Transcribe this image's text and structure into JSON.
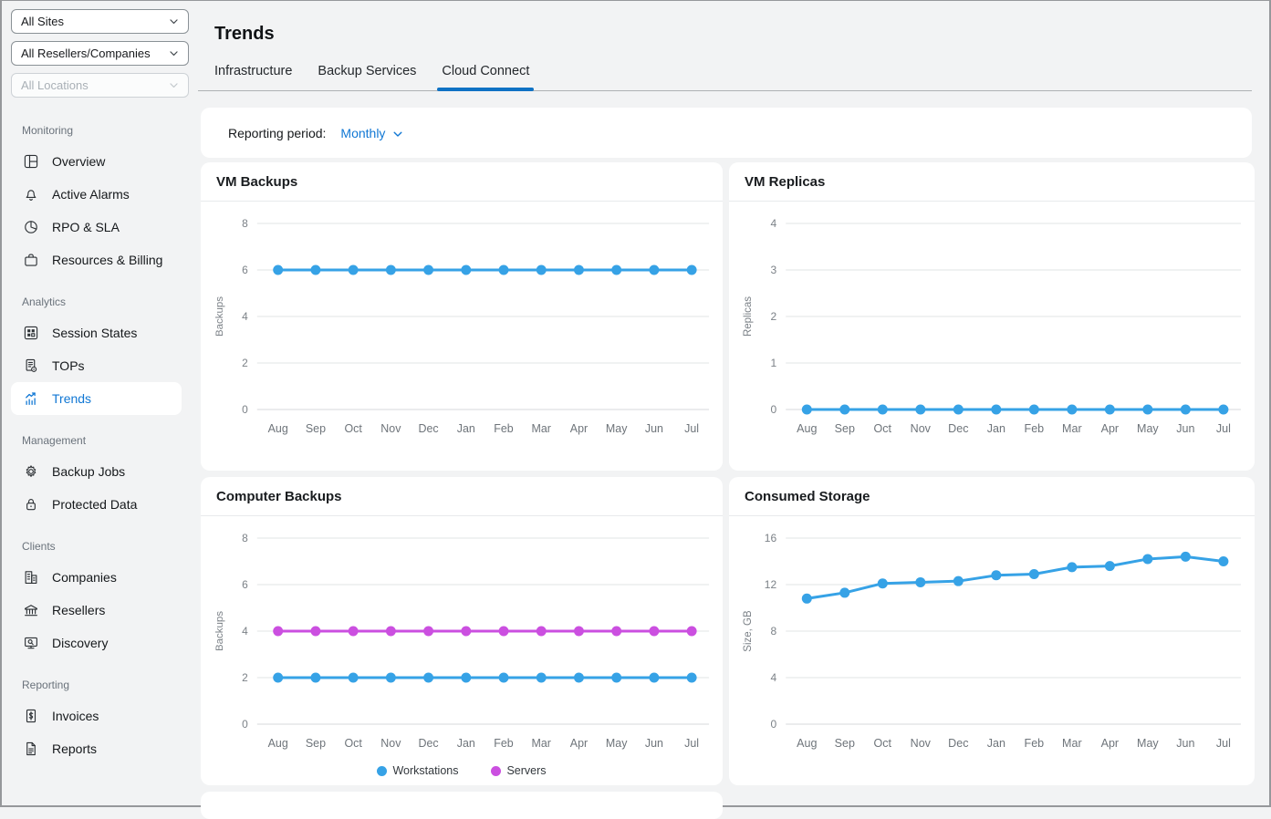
{
  "filters": {
    "sites": {
      "value": "All Sites",
      "disabled": false
    },
    "resellers": {
      "value": "All Resellers/Companies",
      "disabled": false
    },
    "locations": {
      "value": "All Locations",
      "disabled": true
    }
  },
  "sidebar": {
    "sections": [
      {
        "label": "Monitoring",
        "items": [
          {
            "label": "Overview",
            "icon": "overview-icon"
          },
          {
            "label": "Active Alarms",
            "icon": "bell-icon"
          },
          {
            "label": "RPO & SLA",
            "icon": "pie-chart-icon"
          },
          {
            "label": "Resources & Billing",
            "icon": "briefcase-icon"
          }
        ]
      },
      {
        "label": "Analytics",
        "items": [
          {
            "label": "Session States",
            "icon": "grid-icon"
          },
          {
            "label": "TOPs",
            "icon": "tops-document-icon"
          },
          {
            "label": "Trends",
            "icon": "trend-chart-icon",
            "active": true
          }
        ]
      },
      {
        "label": "Management",
        "items": [
          {
            "label": "Backup Jobs",
            "icon": "gear-icon"
          },
          {
            "label": "Protected Data",
            "icon": "lock-icon"
          }
        ]
      },
      {
        "label": "Clients",
        "items": [
          {
            "label": "Companies",
            "icon": "building-icon"
          },
          {
            "label": "Resellers",
            "icon": "bank-icon"
          },
          {
            "label": "Discovery",
            "icon": "monitor-search-icon"
          }
        ]
      },
      {
        "label": "Reporting",
        "items": [
          {
            "label": "Invoices",
            "icon": "invoice-icon"
          },
          {
            "label": "Reports",
            "icon": "report-icon"
          }
        ]
      }
    ]
  },
  "header": {
    "title": "Trends",
    "tabs": [
      {
        "label": "Infrastructure",
        "active": false
      },
      {
        "label": "Backup Services",
        "active": false
      },
      {
        "label": "Cloud Connect",
        "active": true
      }
    ]
  },
  "toolbar": {
    "reporting_period_label": "Reporting period:",
    "reporting_period_value": "Monthly"
  },
  "colors": {
    "accent_blue": "#1077d4",
    "tab_underline": "#0f72c4",
    "series_blue": "#36a2e6",
    "series_magenta": "#cb4fe0",
    "gridline": "#e2e4e6",
    "page_background": "#f2f3f4"
  },
  "chart_data": [
    {
      "type": "line",
      "title": "VM Backups",
      "ylabel": "Backups",
      "categories": [
        "Aug",
        "Sep",
        "Oct",
        "Nov",
        "Dec",
        "Jan",
        "Feb",
        "Mar",
        "Apr",
        "May",
        "Jun",
        "Jul"
      ],
      "yticks": [
        0,
        2,
        4,
        6,
        8
      ],
      "ylim": [
        0,
        8
      ],
      "legend": false,
      "series": [
        {
          "name": "Backups",
          "color": "#36a2e6",
          "values": [
            6,
            6,
            6,
            6,
            6,
            6,
            6,
            6,
            6,
            6,
            6,
            6
          ]
        }
      ]
    },
    {
      "type": "line",
      "title": "VM Replicas",
      "ylabel": "Replicas",
      "categories": [
        "Aug",
        "Sep",
        "Oct",
        "Nov",
        "Dec",
        "Jan",
        "Feb",
        "Mar",
        "Apr",
        "May",
        "Jun",
        "Jul"
      ],
      "yticks": [
        0,
        1,
        2,
        3,
        4
      ],
      "ylim": [
        0,
        4
      ],
      "legend": false,
      "series": [
        {
          "name": "Replicas",
          "color": "#36a2e6",
          "values": [
            0,
            0,
            0,
            0,
            0,
            0,
            0,
            0,
            0,
            0,
            0,
            0
          ]
        }
      ]
    },
    {
      "type": "line",
      "title": "Computer Backups",
      "ylabel": "Backups",
      "categories": [
        "Aug",
        "Sep",
        "Oct",
        "Nov",
        "Dec",
        "Jan",
        "Feb",
        "Mar",
        "Apr",
        "May",
        "Jun",
        "Jul"
      ],
      "yticks": [
        0,
        2,
        4,
        6,
        8
      ],
      "ylim": [
        0,
        8
      ],
      "legend": true,
      "series": [
        {
          "name": "Workstations",
          "color": "#36a2e6",
          "values": [
            2,
            2,
            2,
            2,
            2,
            2,
            2,
            2,
            2,
            2,
            2,
            2
          ]
        },
        {
          "name": "Servers",
          "color": "#cb4fe0",
          "values": [
            4,
            4,
            4,
            4,
            4,
            4,
            4,
            4,
            4,
            4,
            4,
            4
          ]
        }
      ]
    },
    {
      "type": "line",
      "title": "Consumed Storage",
      "ylabel": "Size, GB",
      "categories": [
        "Aug",
        "Sep",
        "Oct",
        "Nov",
        "Dec",
        "Jan",
        "Feb",
        "Mar",
        "Apr",
        "May",
        "Jun",
        "Jul"
      ],
      "yticks": [
        0,
        4,
        8,
        12,
        16
      ],
      "ylim": [
        0,
        16
      ],
      "legend": false,
      "series": [
        {
          "name": "Size, GB",
          "color": "#36a2e6",
          "values": [
            10.8,
            11.3,
            12.1,
            12.2,
            12.3,
            12.8,
            12.9,
            13.5,
            13.6,
            14.2,
            14.4,
            14.0
          ]
        }
      ]
    }
  ]
}
